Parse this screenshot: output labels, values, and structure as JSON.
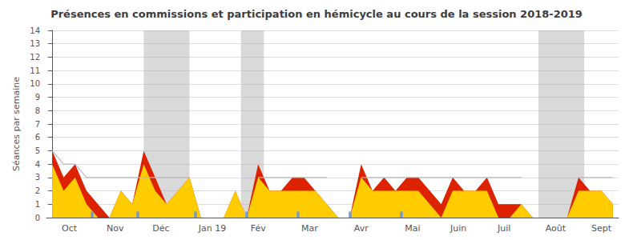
{
  "chart_data": {
    "type": "area",
    "title": "Présences en commissions et participation en hémicycle au cours de la session 2018-2019",
    "y_label": "Séances par semaine",
    "x": [
      0,
      1,
      2,
      3,
      4,
      5,
      6,
      7,
      8,
      9,
      10,
      11,
      12,
      13,
      14,
      15,
      16,
      17,
      18,
      19,
      20,
      21,
      22,
      23,
      24,
      25,
      26,
      27,
      28,
      29,
      30,
      31,
      32,
      33,
      34,
      35,
      36,
      37,
      38,
      39,
      40,
      41,
      42,
      43,
      44,
      45,
      46,
      47,
      48,
      49
    ],
    "xlim": [
      -0.5,
      49.5
    ],
    "xticks": [
      {
        "value": 1.5,
        "label": "Oct"
      },
      {
        "value": 5.5,
        "label": "Nov"
      },
      {
        "value": 9.5,
        "label": "Déc"
      },
      {
        "value": 14.0,
        "label": "Jan 19"
      },
      {
        "value": 18.0,
        "label": "Fév"
      },
      {
        "value": 22.5,
        "label": "Mar"
      },
      {
        "value": 27.0,
        "label": "Avr"
      },
      {
        "value": 31.5,
        "label": "Mai"
      },
      {
        "value": 35.5,
        "label": "Juin"
      },
      {
        "value": 39.5,
        "label": "Juil"
      },
      {
        "value": 44.0,
        "label": "Août"
      },
      {
        "value": 48.0,
        "label": "Sept"
      }
    ],
    "ylim": [
      0,
      14
    ],
    "yticks": [
      0,
      1,
      2,
      3,
      4,
      5,
      6,
      7,
      8,
      9,
      10,
      11,
      12,
      13,
      14
    ],
    "grid": true,
    "series": [
      {
        "type": "area",
        "color": "#dd2200",
        "values": [
          5,
          3,
          4,
          2,
          1,
          0,
          2,
          1,
          5,
          3,
          1,
          2,
          3,
          0,
          0,
          0,
          2,
          0,
          4,
          2,
          2,
          3,
          3,
          2,
          1,
          0,
          0,
          4,
          2,
          3,
          2,
          3,
          3,
          2,
          1,
          3,
          2,
          2,
          3,
          1,
          1,
          1,
          0,
          0,
          0,
          0,
          3,
          2,
          2,
          1
        ]
      },
      {
        "type": "area",
        "color": "#ffcc00",
        "values": [
          4,
          2,
          3,
          1,
          0,
          0,
          2,
          1,
          4,
          2,
          1,
          2,
          3,
          0,
          0,
          0,
          2,
          0,
          3,
          2,
          2,
          2,
          2,
          2,
          1,
          0,
          0,
          3,
          2,
          2,
          2,
          2,
          2,
          1,
          0,
          2,
          2,
          2,
          2,
          0,
          0,
          1,
          0,
          0,
          0,
          0,
          2,
          2,
          2,
          1
        ]
      },
      {
        "type": "line",
        "color": "#bbbbbb",
        "values": [
          5,
          4,
          4,
          3,
          3,
          3,
          3,
          3,
          3,
          3,
          3,
          3,
          3,
          null,
          null,
          null,
          3,
          null,
          3,
          3,
          3,
          3,
          3,
          3,
          3,
          null,
          null,
          3,
          3,
          3,
          3,
          3,
          3,
          3,
          3,
          3,
          3,
          3,
          3,
          3,
          3,
          3,
          null,
          null,
          null,
          null,
          3,
          3,
          3,
          3
        ]
      }
    ],
    "bands": [
      {
        "start": 8.0,
        "end": 12.0
      },
      {
        "start": 16.5,
        "end": 18.5
      },
      {
        "start": 42.5,
        "end": 46.5
      }
    ],
    "band_color": "#aaaaaa",
    "markers": [
      3.5,
      7.5,
      12.5,
      17.0,
      21.5,
      26.0,
      30.5
    ],
    "marker_color": "#7799cc"
  }
}
